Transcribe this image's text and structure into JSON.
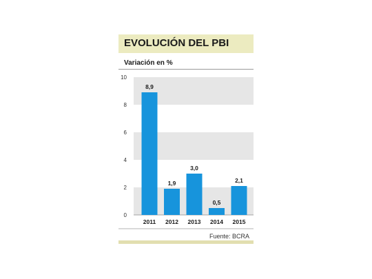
{
  "colors": {
    "bar": "#1794dc",
    "band": "#e6e6e6",
    "title_band": "#ecebc0",
    "bottom_band": "#e2dfb0"
  },
  "header": {
    "title": "EVOLUCIÓN DEL PBI",
    "subtitle": "Variación en %"
  },
  "footer": {
    "source": "Fuente: BCRA"
  },
  "chart_data": {
    "type": "bar",
    "title": "EVOLUCIÓN DEL PBI",
    "subtitle": "Variación en %",
    "categories": [
      "2011",
      "2012",
      "2013",
      "2014",
      "2015"
    ],
    "values": [
      8.9,
      1.9,
      3.0,
      0.5,
      2.1
    ],
    "value_labels": [
      "8,9",
      "1,9",
      "3,0",
      "0,5",
      "2,1"
    ],
    "ylim": [
      0,
      10
    ],
    "yticks": [
      0,
      2,
      4,
      6,
      8,
      10
    ],
    "xlabel": "",
    "ylabel": "",
    "grid": "alternating horizontal bands",
    "legend": "none"
  }
}
